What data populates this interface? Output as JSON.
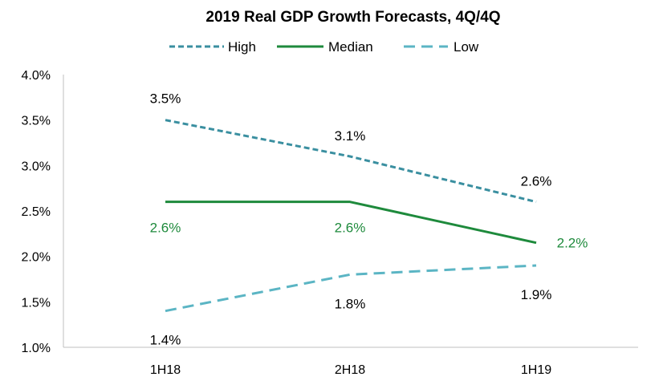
{
  "chart_data": {
    "type": "line",
    "title": "2019 Real GDP Growth Forecasts, 4Q/4Q",
    "categories": [
      "1H18",
      "2H18",
      "1H19"
    ],
    "y_ticks": [
      "1.0%",
      "1.5%",
      "2.0%",
      "2.5%",
      "3.0%",
      "3.5%",
      "4.0%"
    ],
    "ylim": [
      1.0,
      4.0
    ],
    "y_step": 0.5,
    "xlabel": "",
    "ylabel": "",
    "grid": false,
    "legend_position": "top",
    "series": [
      {
        "name": "High",
        "values": [
          3.5,
          3.1,
          2.6
        ],
        "labels": [
          "3.5%",
          "3.1%",
          "2.6%"
        ],
        "color": "#3A8FA0",
        "label_color": "#000000",
        "dash": "short-dash"
      },
      {
        "name": "Median",
        "values": [
          2.6,
          2.6,
          2.15
        ],
        "labels": [
          "2.6%",
          "2.6%",
          "2.2%"
        ],
        "color": "#1E8A3C",
        "label_color": "#1E8A3C",
        "dash": "solid"
      },
      {
        "name": "Low",
        "values": [
          1.4,
          1.8,
          1.9
        ],
        "labels": [
          "1.4%",
          "1.8%",
          "1.9%"
        ],
        "color": "#5BB5C4",
        "label_color": "#000000",
        "dash": "long-dash"
      }
    ]
  }
}
